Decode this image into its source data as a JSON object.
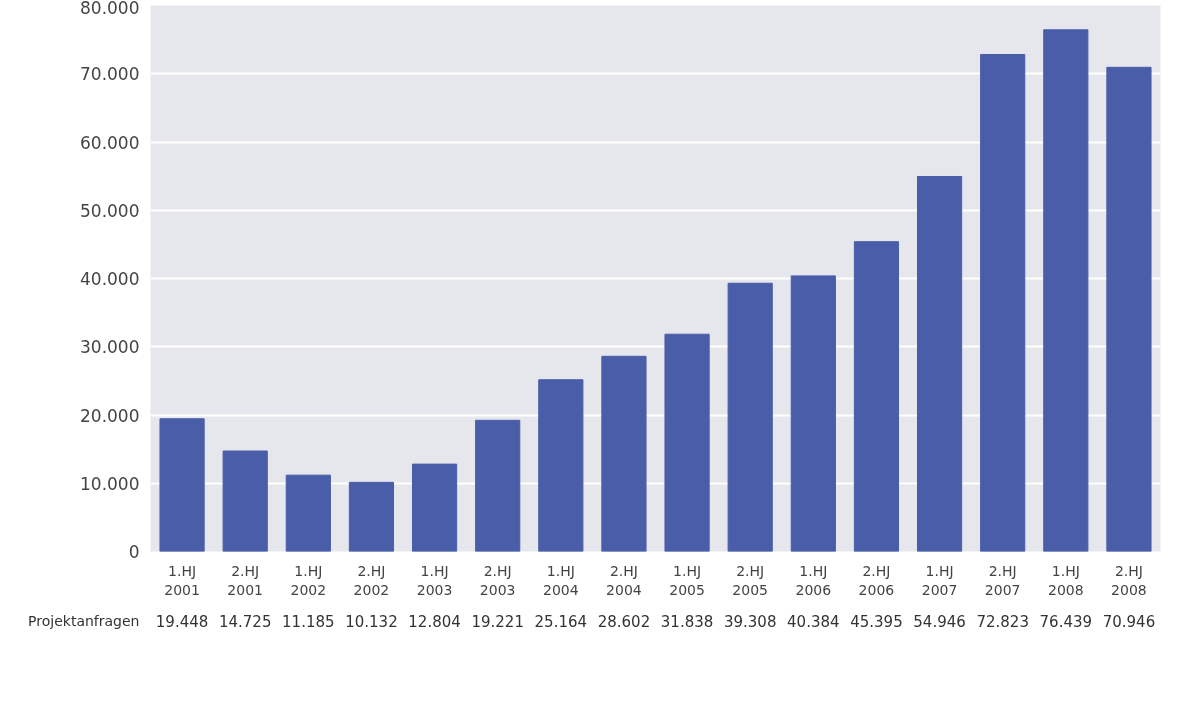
{
  "chart_data": {
    "type": "bar",
    "categories": [
      "1.HJ\n2001",
      "2.HJ\n2001",
      "1.HJ\n2002",
      "2.HJ\n2002",
      "1.HJ\n2003",
      "2.HJ\n2003",
      "1.HJ\n2004",
      "2.HJ\n2004",
      "1.HJ\n2005",
      "2.HJ\n2005",
      "1.HJ\n2006",
      "2.HJ\n2006",
      "1.HJ\n2007",
      "2.HJ\n2007",
      "1.HJ\n2008",
      "2.HJ\n2008"
    ],
    "series": [
      {
        "name": "Projektanfragen",
        "color": "#4a5da8",
        "values": [
          19448,
          14725,
          11185,
          10132,
          12804,
          19221,
          25164,
          28602,
          31838,
          39308,
          40384,
          45395,
          54946,
          72823,
          76439,
          70946
        ],
        "value_labels": [
          "19.448",
          "14.725",
          "11.185",
          "10.132",
          "12.804",
          "19.221",
          "25.164",
          "28.602",
          "31.838",
          "39.308",
          "40.384",
          "45.395",
          "54.946",
          "72.823",
          "76.439",
          "70.946"
        ]
      }
    ],
    "ylim": [
      0,
      80000
    ],
    "yticks": [
      {
        "value": 0,
        "label": "0"
      },
      {
        "value": 10000,
        "label": "10.000"
      },
      {
        "value": 20000,
        "label": "20.000"
      },
      {
        "value": 30000,
        "label": "30.000"
      },
      {
        "value": 40000,
        "label": "40.000"
      },
      {
        "value": 50000,
        "label": "50.000"
      },
      {
        "value": 60000,
        "label": "60.000"
      },
      {
        "value": 70000,
        "label": "70.000"
      },
      {
        "value": 80000,
        "label": "80.000"
      }
    ],
    "grid": "y"
  }
}
